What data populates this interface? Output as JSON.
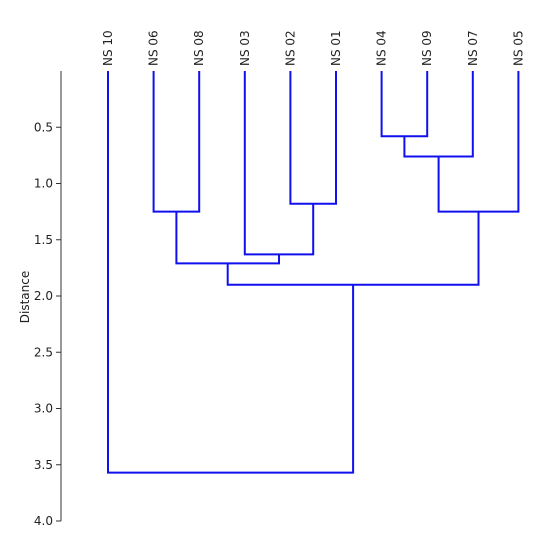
{
  "chart_data": {
    "type": "dendrogram",
    "orientation": "top-down",
    "ylabel": "Distance",
    "ylim": [
      0,
      4.0
    ],
    "yticks": [
      0.5,
      1.0,
      1.5,
      2.0,
      2.5,
      3.0,
      3.5,
      4.0
    ],
    "ytick_labels": [
      "0.5",
      "1.0",
      "1.5",
      "2.0",
      "2.5",
      "3.0",
      "3.5",
      "4.0"
    ],
    "line_color": "#1010ee",
    "leaves": [
      "NS 10",
      "NS 06",
      "NS 08",
      "NS 03",
      "NS 02",
      "NS 01",
      "NS 04",
      "NS 09",
      "NS 07",
      "NS 05"
    ],
    "merges": [
      {
        "id": "A",
        "left": "NS 04",
        "right": "NS 09",
        "distance": 0.58
      },
      {
        "id": "B",
        "left": "A",
        "right": "NS 07",
        "distance": 0.76
      },
      {
        "id": "C",
        "left": "NS 02",
        "right": "NS 01",
        "distance": 1.18
      },
      {
        "id": "D",
        "left": "NS 06",
        "right": "NS 08",
        "distance": 1.25
      },
      {
        "id": "E",
        "left": "B",
        "right": "NS 05",
        "distance": 1.25
      },
      {
        "id": "F",
        "left": "NS 03",
        "right": "C",
        "distance": 1.63
      },
      {
        "id": "G",
        "left": "D",
        "right": "F",
        "distance": 1.71
      },
      {
        "id": "H",
        "left": "G",
        "right": "E",
        "distance": 1.9
      },
      {
        "id": "I",
        "left": "NS 10",
        "right": "H",
        "distance": 3.57
      }
    ]
  }
}
